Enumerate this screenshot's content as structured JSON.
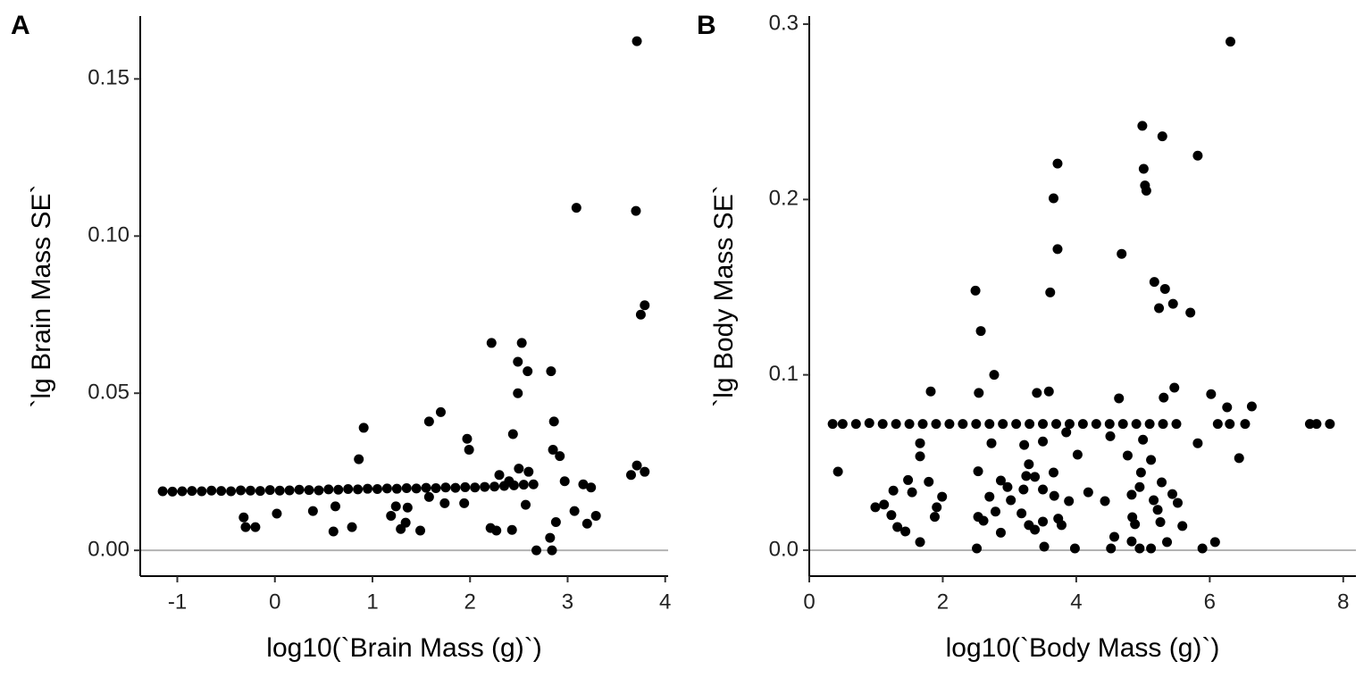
{
  "chart_data": [
    {
      "type": "scatter",
      "panel_label": "A",
      "x_label": "log10(`Brain Mass (g)`)",
      "y_label": "`lg Brain Mass SE`",
      "color": "#000000",
      "hline": 0,
      "hline_color": "#b3b3b3",
      "xlim": [
        -1.38,
        4.03
      ],
      "ylim": [
        -0.0082,
        0.17
      ],
      "xticks": [
        -1,
        0,
        1,
        2,
        3,
        4
      ],
      "yticks": [
        {
          "value": 0,
          "label": "0.00"
        },
        0.05,
        {
          "value": 0.1,
          "label": "0.10"
        },
        0.15
      ],
      "x": [
        -1.15,
        -1.05,
        -0.95,
        -0.85,
        -0.75,
        -0.65,
        -0.55,
        -0.45,
        -0.35,
        -0.25,
        -0.15,
        -0.05,
        0.05,
        0.15,
        0.25,
        0.35,
        0.45,
        0.55,
        0.65,
        0.75,
        0.85,
        0.95,
        1.05,
        1.15,
        1.25,
        1.35,
        1.45,
        1.55,
        1.65,
        1.75,
        1.85,
        1.95,
        2.05,
        2.15,
        2.25,
        2.35,
        2.45,
        2.55,
        2.65,
        2.3,
        2.5,
        2.6,
        2.4,
        3.71,
        3.09,
        3.7,
        3.79,
        3.75,
        2.22,
        2.53,
        2.49,
        2.59,
        2.83,
        2.49,
        1.7,
        1.58,
        2.86,
        0.91,
        2.44,
        1.97,
        1.99,
        0.86,
        2.85,
        2.92,
        3.71,
        3.65,
        3.79,
        2.97,
        3.16,
        3.24,
        1.58,
        1.94,
        1.74,
        0.39,
        0.62,
        0.02,
        -0.32,
        -0.3,
        -0.2,
        0.6,
        0.79,
        1.19,
        1.24,
        1.36,
        1.34,
        1.29,
        1.49,
        2.21,
        2.27,
        2.43,
        2.57,
        2.88,
        2.82,
        2.68,
        2.84,
        3.29,
        3.2,
        3.07
      ],
      "values": [
        0.0188,
        0.0187,
        0.0188,
        0.0189,
        0.0188,
        0.019,
        0.0189,
        0.0188,
        0.0191,
        0.019,
        0.0189,
        0.0192,
        0.019,
        0.0191,
        0.0193,
        0.0192,
        0.0191,
        0.0194,
        0.0193,
        0.0195,
        0.0194,
        0.0196,
        0.0195,
        0.0197,
        0.0196,
        0.0198,
        0.0197,
        0.0199,
        0.0198,
        0.02,
        0.0199,
        0.0201,
        0.02,
        0.0202,
        0.0203,
        0.0205,
        0.0207,
        0.0209,
        0.021,
        0.024,
        0.026,
        0.025,
        0.022,
        0.162,
        0.109,
        0.108,
        0.078,
        0.075,
        0.066,
        0.066,
        0.06,
        0.057,
        0.057,
        0.05,
        0.044,
        0.041,
        0.041,
        0.039,
        0.037,
        0.0355,
        0.032,
        0.029,
        0.032,
        0.03,
        0.027,
        0.024,
        0.025,
        0.022,
        0.021,
        0.02,
        0.017,
        0.015,
        0.015,
        0.0125,
        0.014,
        0.0117,
        0.0105,
        0.0074,
        0.0074,
        0.006,
        0.0074,
        0.011,
        0.014,
        0.0136,
        0.0088,
        0.0068,
        0.0063,
        0.0071,
        0.0063,
        0.0065,
        0.0145,
        0.009,
        0.004,
        0,
        0,
        0.011,
        0.0085,
        0.0125
      ]
    },
    {
      "type": "scatter",
      "panel_label": "B",
      "x_label": "log10(`Body Mass (g)`)",
      "y_label": "`lg Body Mass SE`",
      "color": "#000000",
      "hline": 0,
      "hline_color": "#b3b3b3",
      "xlim": [
        0,
        8.19
      ],
      "ylim": [
        -0.0148,
        0.3046
      ],
      "xticks": [
        0,
        2,
        4,
        6,
        8
      ],
      "yticks": [
        {
          "value": 0,
          "label": "0.0"
        },
        0.1,
        0.2,
        0.3
      ],
      "x": [
        0.35,
        0.5,
        0.7,
        0.9,
        1.1,
        1.3,
        1.5,
        1.7,
        1.9,
        2.1,
        2.3,
        2.5,
        2.7,
        2.9,
        3.1,
        3.3,
        3.5,
        3.7,
        3.9,
        4.1,
        4.3,
        4.5,
        4.7,
        4.9,
        5.1,
        5.3,
        5.5,
        6.12,
        6.3,
        6.53,
        7.5,
        7.6,
        7.8,
        6.31,
        4.99,
        5.29,
        5.01,
        5.03,
        5.05,
        5.82,
        3.72,
        3.66,
        3.72,
        4.68,
        5.17,
        5.33,
        5.24,
        5.45,
        5.71,
        2.49,
        3.61,
        2.57,
        2.77,
        1.82,
        2.54,
        3.41,
        3.59,
        5.31,
        5.47,
        6.02,
        6.26,
        6.63,
        4.64,
        0.43,
        0.99,
        1.12,
        1.26,
        1.23,
        1.32,
        1.44,
        1.48,
        1.54,
        1.66,
        1.66,
        1.66,
        1.79,
        1.91,
        1.99,
        1.88,
        2.53,
        2.53,
        2.51,
        2.61,
        2.7,
        2.73,
        2.79,
        2.87,
        2.87,
        2.97,
        3.02,
        3.18,
        3.21,
        3.25,
        3.29,
        3.22,
        3.38,
        3.38,
        3.29,
        3.5,
        3.52,
        3.5,
        3.5,
        3.66,
        3.67,
        3.73,
        3.78,
        3.85,
        3.89,
        3.98,
        4.02,
        4.18,
        4.43,
        4.51,
        4.52,
        4.57,
        4.77,
        4.83,
        4.84,
        4.83,
        4.88,
        4.95,
        4.97,
        5.0,
        4.95,
        5.12,
        5.12,
        5.16,
        5.22,
        5.26,
        5.28,
        5.36,
        5.44,
        5.52,
        5.59,
        5.82,
        5.89,
        6.08,
        6.44
      ],
      "values": [
        0.072,
        0.072,
        0.072,
        0.0725,
        0.072,
        0.072,
        0.072,
        0.072,
        0.072,
        0.072,
        0.072,
        0.072,
        0.072,
        0.072,
        0.072,
        0.072,
        0.072,
        0.072,
        0.072,
        0.072,
        0.072,
        0.072,
        0.072,
        0.072,
        0.072,
        0.072,
        0.072,
        0.072,
        0.072,
        0.072,
        0.072,
        0.072,
        0.072,
        0.29,
        0.242,
        0.236,
        0.2175,
        0.208,
        0.205,
        0.225,
        0.2205,
        0.2007,
        0.1717,
        0.169,
        0.153,
        0.149,
        0.138,
        0.1405,
        0.1355,
        0.148,
        0.147,
        0.125,
        0.1,
        0.0905,
        0.0897,
        0.0897,
        0.0905,
        0.087,
        0.0927,
        0.089,
        0.0815,
        0.082,
        0.0866,
        0.0448,
        0.0245,
        0.026,
        0.034,
        0.02,
        0.0132,
        0.0107,
        0.04,
        0.033,
        0.061,
        0.0535,
        0.0046,
        0.039,
        0.0245,
        0.0305,
        0.019,
        0.045,
        0.019,
        0.001,
        0.0168,
        0.0305,
        0.061,
        0.022,
        0.0397,
        0.01,
        0.036,
        0.0285,
        0.021,
        0.0346,
        0.0423,
        0.049,
        0.06,
        0.0418,
        0.0117,
        0.0143,
        0.0163,
        0.002,
        0.0346,
        0.062,
        0.0443,
        0.031,
        0.018,
        0.0143,
        0.0672,
        0.028,
        0.001,
        0.0545,
        0.033,
        0.028,
        0.065,
        0.001,
        0.0076,
        0.054,
        0.0316,
        0.0188,
        0.005,
        0.0148,
        0.036,
        0.0443,
        0.063,
        0.001,
        0.001,
        0.0515,
        0.0285,
        0.023,
        0.016,
        0.0387,
        0.0046,
        0.032,
        0.027,
        0.0138,
        0.061,
        0.001,
        0.0046,
        0.0525
      ]
    }
  ]
}
